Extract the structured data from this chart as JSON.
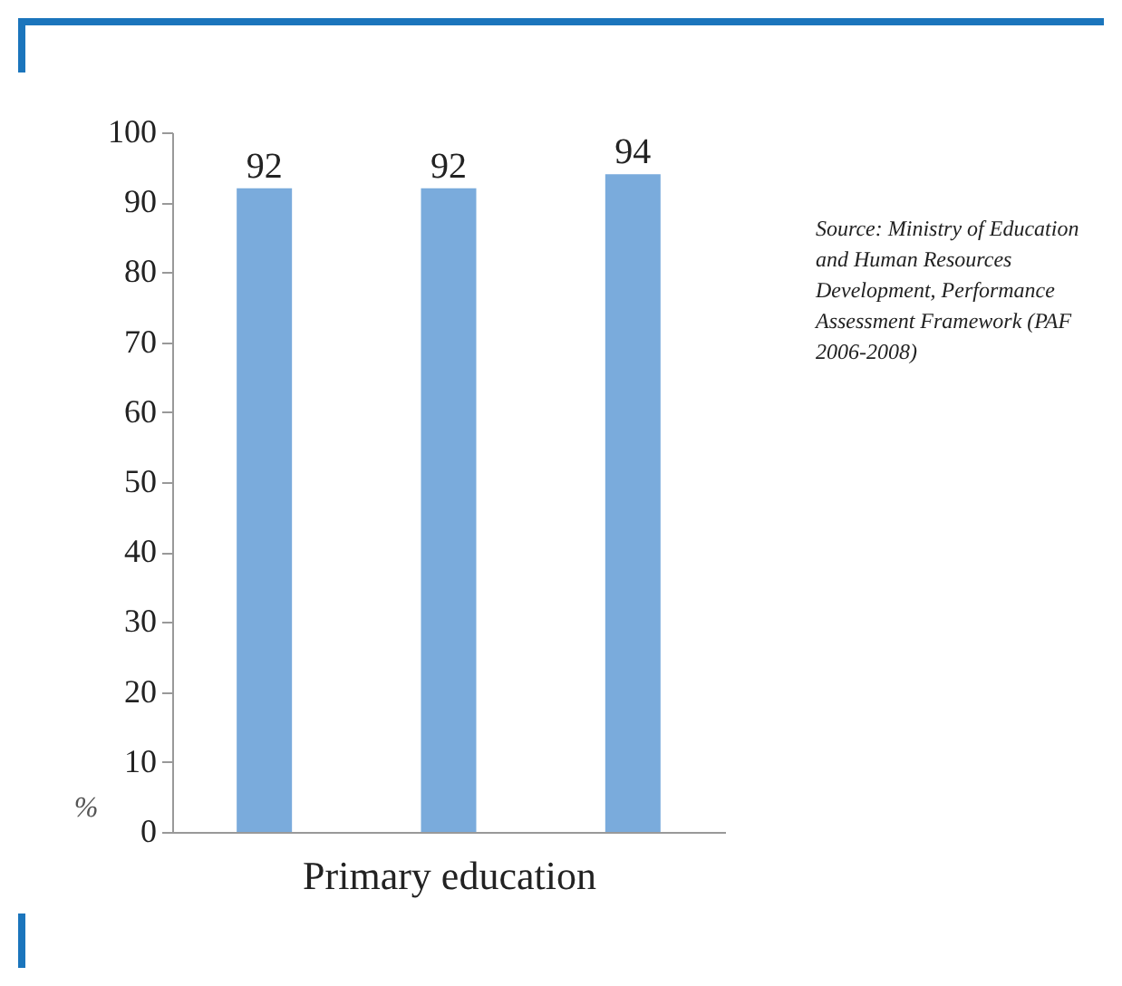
{
  "chart_data": {
    "type": "bar",
    "xlabel": "Primary education",
    "ylabel": "%",
    "categories": [
      null,
      null,
      null
    ],
    "values": [
      92,
      92,
      94
    ],
    "color": "#7aabdc",
    "ylim": [
      0,
      100
    ],
    "yticks": [
      0,
      10,
      20,
      30,
      40,
      50,
      60,
      70,
      80,
      90,
      100
    ],
    "grid": false,
    "data_labels": true,
    "annotations": [
      "Source: Ministry of Education and Human Resources Development, Performance Assessment Framework (PAF 2006-2008)"
    ]
  }
}
